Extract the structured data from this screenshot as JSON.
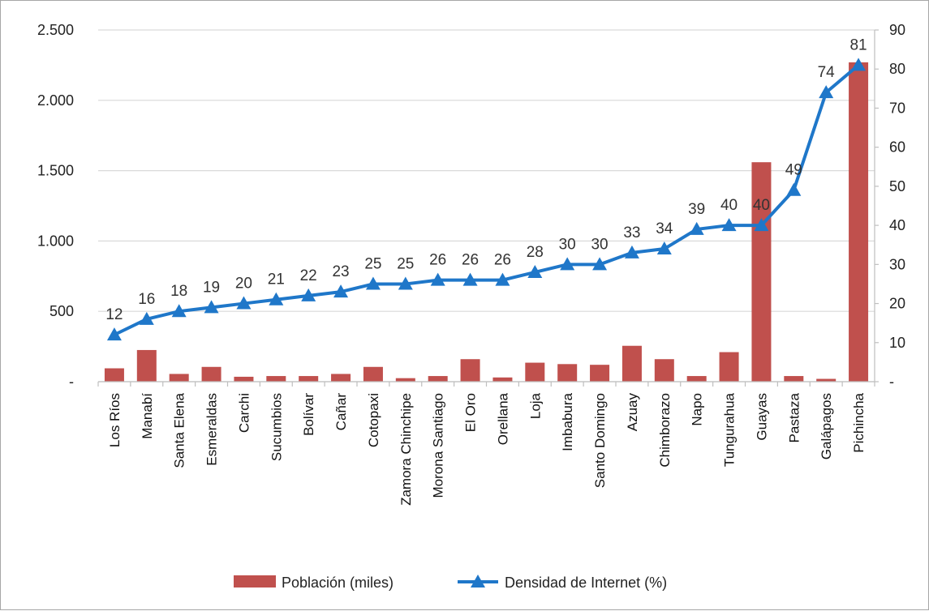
{
  "chart_data": {
    "type": "bar+line",
    "categories": [
      "Los Ríos",
      "Manabí",
      "Santa Elena",
      "Esmeraldas",
      "Carchi",
      "Sucumbios",
      "Bolívar",
      "Cañar",
      "Cotopaxi",
      "Zamora Chinchipe",
      "Morona Santiago",
      "El Oro",
      "Orellana",
      "Loja",
      "Imbabura",
      "Santo Domingo",
      "Azuay",
      "Chimborazo",
      "Napo",
      "Tungurahua",
      "Guayas",
      "Pastaza",
      "Galápagos",
      "Pichincha"
    ],
    "series": [
      {
        "name": "Población (miles)",
        "type": "bar",
        "axis": "left",
        "color": "#c0504d",
        "values": [
          95,
          225,
          55,
          105,
          35,
          40,
          40,
          55,
          105,
          25,
          40,
          160,
          30,
          135,
          125,
          120,
          255,
          160,
          40,
          210,
          1560,
          40,
          20,
          2270
        ]
      },
      {
        "name": "Densidad de Internet (%)",
        "type": "line",
        "axis": "right",
        "color": "#1f77c9",
        "marker": "triangle",
        "values": [
          12,
          16,
          18,
          19,
          20,
          21,
          22,
          23,
          25,
          25,
          26,
          26,
          26,
          28,
          30,
          30,
          33,
          34,
          39,
          40,
          40,
          49,
          74,
          81
        ]
      }
    ],
    "y_left": {
      "range": [
        0,
        2500
      ],
      "ticks": [
        0,
        500,
        1000,
        1500,
        2000,
        2500
      ],
      "tick_labels": [
        "-",
        "500",
        "1.000",
        "1.500",
        "2.000",
        "2.500"
      ]
    },
    "y_right": {
      "range": [
        0,
        90
      ],
      "ticks": [
        0,
        10,
        20,
        30,
        40,
        50,
        60,
        70,
        80,
        90
      ],
      "tick_labels": [
        "-",
        "10",
        "20",
        "30",
        "40",
        "50",
        "60",
        "70",
        "80",
        "90"
      ]
    },
    "grid": "horizontal",
    "legend": "bottom"
  }
}
